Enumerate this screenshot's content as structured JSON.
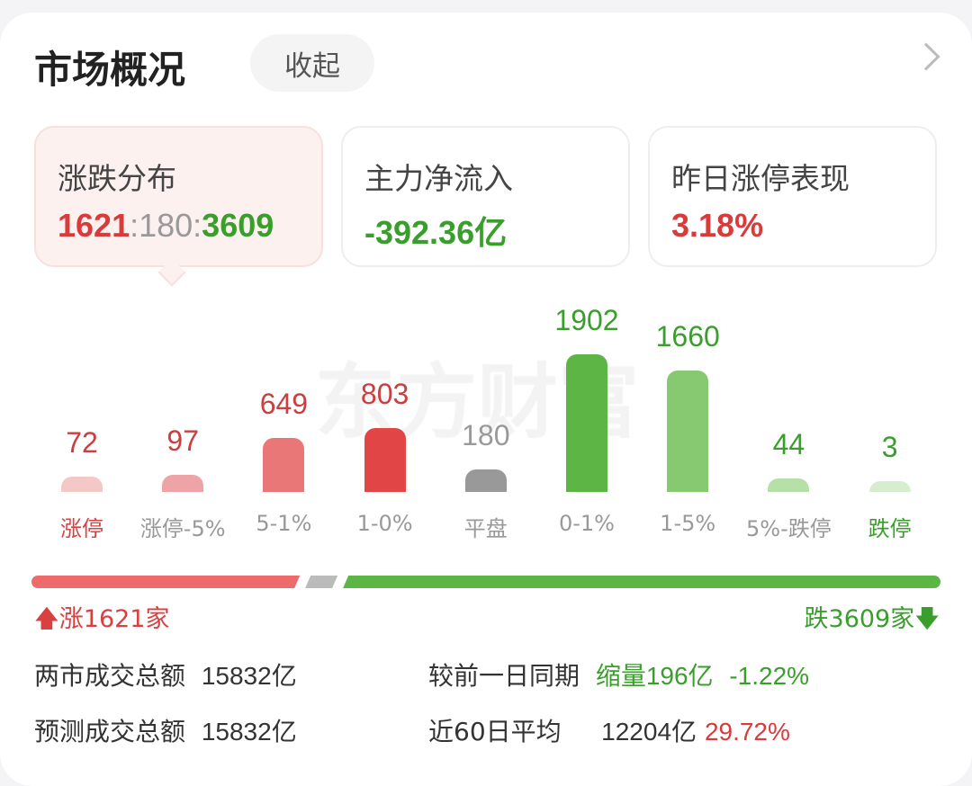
{
  "header": {
    "title": "市场概况",
    "collapse_label": "收起",
    "more_icon": "chevron-right-icon"
  },
  "cards": [
    {
      "label": "涨跌分布",
      "value_parts": [
        {
          "text": "1621",
          "color": "#d93a3a"
        },
        {
          "text": ":180:",
          "color": "#999999"
        },
        {
          "text": "3609",
          "color": "#3a9e2c"
        }
      ],
      "selected": true
    },
    {
      "label": "主力净流入",
      "value": "-392.36亿",
      "color": "#3a9e2c"
    },
    {
      "label": "昨日涨停表现",
      "value": "3.18%",
      "color": "#d93a3a"
    }
  ],
  "watermark": "东方财富",
  "chart_data": {
    "type": "bar",
    "categories": [
      "涨停",
      "涨停-5%",
      "5-1%",
      "1-0%",
      "平盘",
      "0-1%",
      "1-5%",
      "5%-跌停",
      "跌停"
    ],
    "values": [
      72,
      97,
      649,
      803,
      180,
      1902,
      1660,
      44,
      3
    ],
    "value_labels": [
      "72",
      "97",
      "649",
      "803",
      "180",
      "1902",
      "1660",
      "44",
      "3"
    ],
    "bar_colors": [
      "#f5c8c8",
      "#eea4a7",
      "#ea7777",
      "#e24545",
      "#999999",
      "#5cb545",
      "#86c970",
      "#b6e0a7",
      "#d7edd0"
    ],
    "label_colors": [
      "#c94040",
      "#c94040",
      "#c94040",
      "#c94040",
      "#999999",
      "#3a9e2c",
      "#3a9e2c",
      "#3a9e2c",
      "#3a9e2c"
    ],
    "category_colors": [
      "#d94040",
      "#999999",
      "#999999",
      "#999999",
      "#999999",
      "#999999",
      "#999999",
      "#999999",
      "#3a9e2c"
    ]
  },
  "breadth": {
    "up": 1621,
    "flat": 180,
    "down": 3609,
    "up_label": "涨1621家",
    "down_label": "跌3609家",
    "up_color": "#ee6b6b",
    "flat_color": "#bbbbbb",
    "down_color": "#5cb545"
  },
  "stats": {
    "total_label": "两市成交总额",
    "total_value": "15832亿",
    "compare_label": "较前一日同期",
    "compare_change": "缩量196亿",
    "compare_pct": "-1.22%",
    "forecast_label": "预测成交总额",
    "forecast_value": "15832亿",
    "avg_label": "近60日平均",
    "avg_value": "12204亿",
    "avg_pct": "29.72%"
  }
}
